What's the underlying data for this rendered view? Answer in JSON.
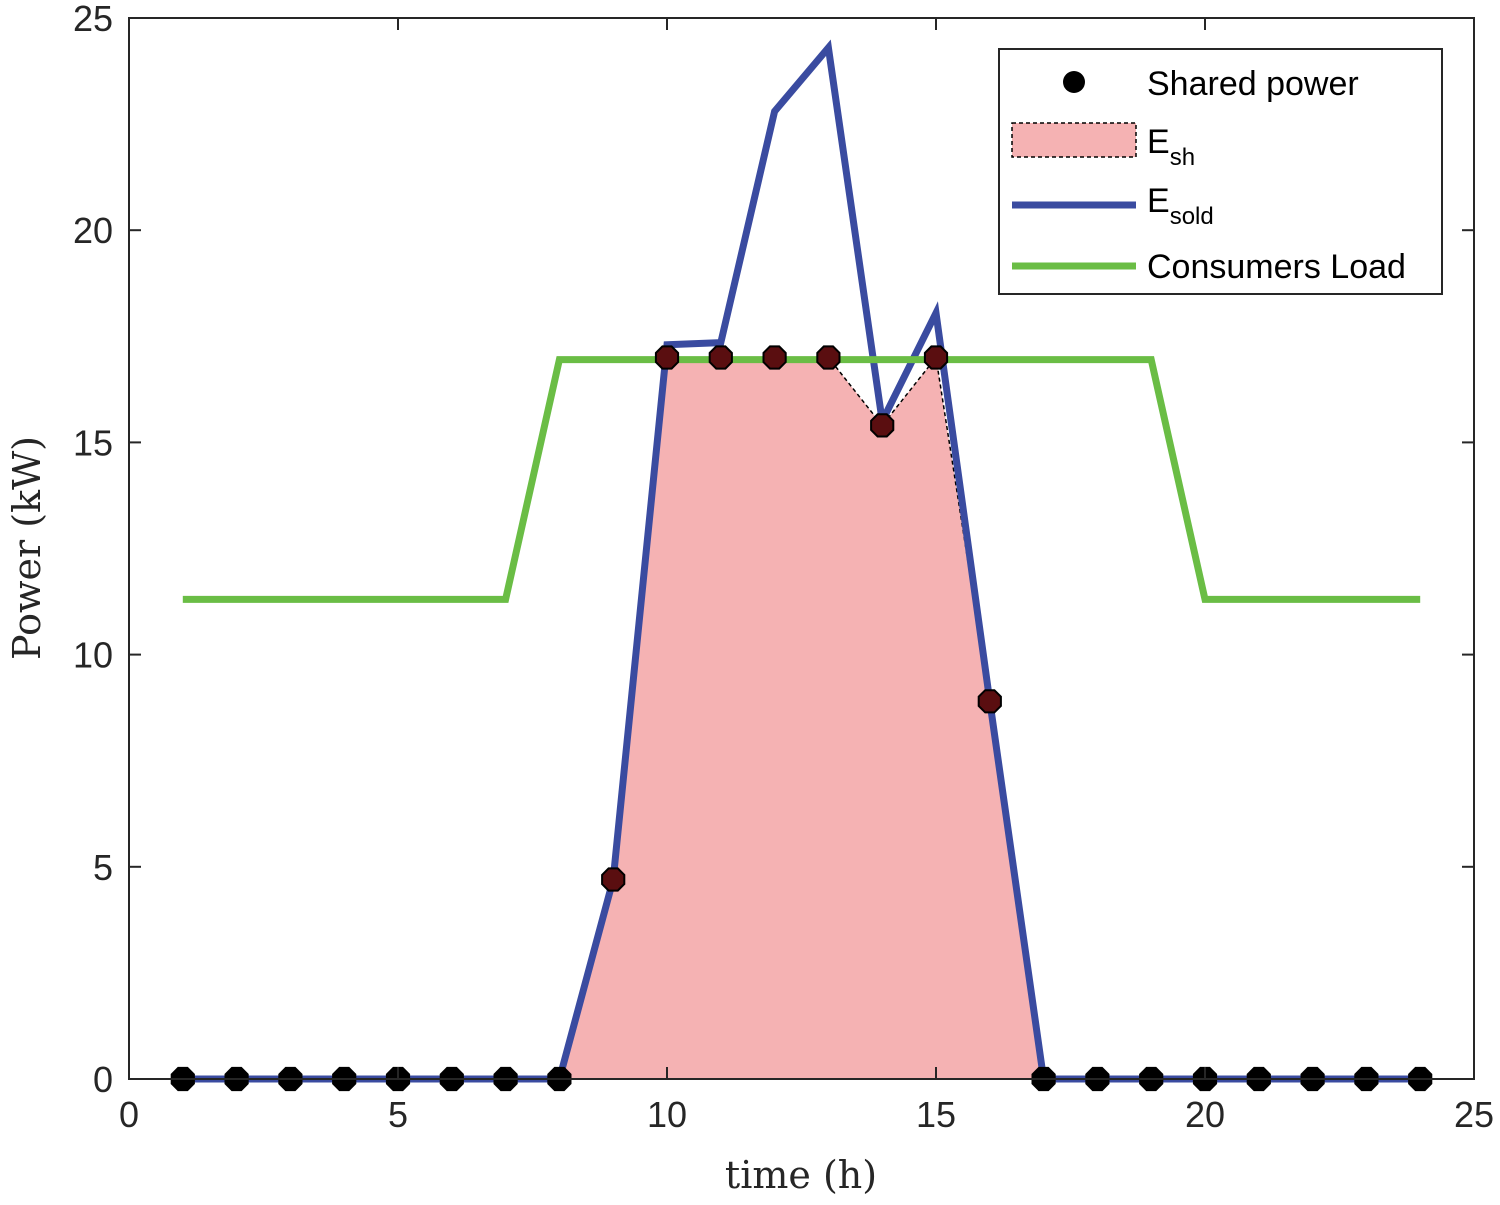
{
  "chart_data": {
    "type": "line",
    "xlabel": "time (h)",
    "ylabel": "Power (kW)",
    "xlim": [
      0,
      25
    ],
    "ylim": [
      0,
      25
    ],
    "xticks": [
      0,
      5,
      10,
      15,
      20,
      25
    ],
    "yticks": [
      0,
      5,
      10,
      15,
      20,
      25
    ],
    "grid": false,
    "legend_position": "top-right",
    "x": [
      1,
      2,
      3,
      4,
      5,
      6,
      7,
      8,
      9,
      10,
      11,
      12,
      13,
      14,
      15,
      16,
      17,
      18,
      19,
      20,
      21,
      22,
      23,
      24
    ],
    "series": [
      {
        "name": "Shared power",
        "kind": "markers",
        "color": "#000000",
        "values": [
          0,
          0,
          0,
          0,
          0,
          0,
          0,
          0,
          4.7,
          17,
          17,
          17,
          17,
          15.4,
          17,
          8.9,
          0,
          0,
          0,
          0,
          0,
          0,
          0,
          0
        ]
      },
      {
        "name": "E",
        "name_sub": "sh",
        "kind": "area",
        "color": "#f5b2b3",
        "edge_color": "#000000",
        "values": [
          0,
          0,
          0,
          0,
          0,
          0,
          0,
          0,
          4.7,
          17,
          17,
          17,
          17,
          15.4,
          17,
          8.9,
          0,
          0,
          0,
          0,
          0,
          0,
          0,
          0
        ]
      },
      {
        "name": "E",
        "name_sub": "sold",
        "kind": "line",
        "color": "#3a4ba0",
        "values": [
          0,
          0,
          0,
          0,
          0,
          0,
          0,
          0,
          4.7,
          17.3,
          17.35,
          22.8,
          24.3,
          15.5,
          18.05,
          8.9,
          0,
          0,
          0,
          0,
          0,
          0,
          0,
          0
        ]
      },
      {
        "name": "Consumers Load",
        "kind": "line",
        "color": "#6abd45",
        "values": [
          11.3,
          11.3,
          11.3,
          11.3,
          11.3,
          11.3,
          11.3,
          16.95,
          16.95,
          16.95,
          16.95,
          16.95,
          16.95,
          16.95,
          16.95,
          16.95,
          16.95,
          16.95,
          16.95,
          11.3,
          11.3,
          11.3,
          11.3,
          11.3
        ]
      }
    ]
  }
}
